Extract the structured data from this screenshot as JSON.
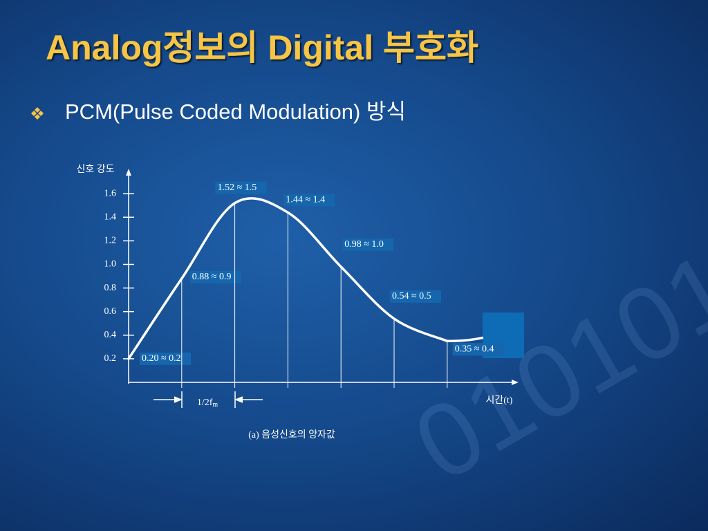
{
  "slide": {
    "title": "Analog정보의 Digital 부호화",
    "bullet": "PCM(Pulse Coded Modulation) 방식"
  },
  "chart_data": {
    "type": "line",
    "y_label": "신호 강도",
    "x_label": "시간(t)",
    "caption": "(a) 음성신호의 양자값",
    "interval_label": "1/2f",
    "interval_label_sub": "m",
    "categories": [
      null,
      null,
      null,
      null,
      null,
      null,
      null
    ],
    "values": [
      0.2,
      0.88,
      1.52,
      1.44,
      0.98,
      0.54,
      0.35
    ],
    "value_labels": [
      "0.20 ≈ 0.2",
      "0.88 ≈ 0.9",
      "1.52 ≈ 1.5",
      "1.44 ≈ 1.4",
      "0.98 ≈ 1.0",
      "0.54 ≈ 0.5",
      "0.35 ≈ 0.4"
    ],
    "color": "#ffffff",
    "ylim": [
      0,
      1.8
    ],
    "yticks": [
      0.2,
      0.4,
      0.6,
      0.8,
      {
        "value": 1,
        "label": "1.0"
      },
      1.2,
      1.4,
      1.6
    ]
  }
}
